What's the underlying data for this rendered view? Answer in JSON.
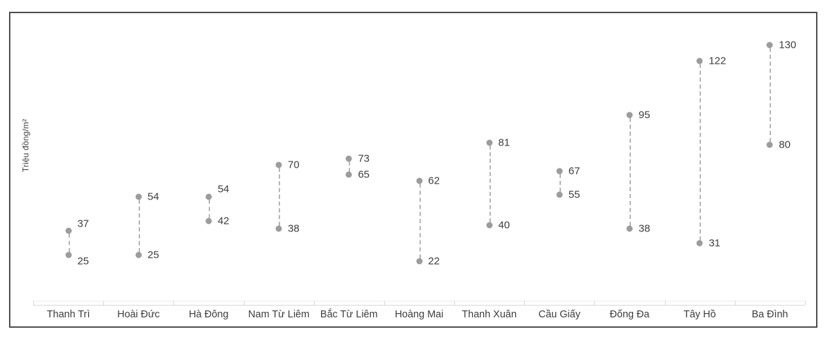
{
  "chart": {
    "y_axis_title": "Triệu đồng/m²",
    "colors": {
      "dot": "#9c9c9c",
      "connector": "#b5b5b5",
      "value_label": "#3d3d3d",
      "category_label": "#3d3d3d",
      "axis_line": "#d8d8d8",
      "axis_line_light": "#ececec",
      "frame_border": "#4d4d4d"
    }
  },
  "chart_data": {
    "type": "scatter",
    "subtype": "dumbbell-range",
    "title": "",
    "xlabel": "",
    "ylabel": "Triệu đồng/m²",
    "ylim": [
      0,
      150
    ],
    "grid": false,
    "legend_position": "none",
    "categories": [
      "Thanh Trì",
      "Hoài Đức",
      "Hà Đông",
      "Nam Từ Liêm",
      "Bắc Từ Liêm",
      "Hoàng Mai",
      "Thanh Xuân",
      "Cầu Giấy",
      "Đống Đa",
      "Tây Hồ",
      "Ba Đình"
    ],
    "series": [
      {
        "name": "max",
        "values": [
          37,
          54,
          54,
          70,
          73,
          62,
          81,
          67,
          95,
          122,
          130
        ]
      },
      {
        "name": "min",
        "values": [
          25,
          25,
          42,
          38,
          65,
          22,
          40,
          55,
          38,
          31,
          80
        ]
      }
    ],
    "annotation_dy": {
      "max": [
        -10,
        0,
        -11,
        0,
        0,
        0,
        0,
        0,
        0,
        0,
        0
      ],
      "min": [
        9,
        0,
        0,
        0,
        0,
        0,
        0,
        0,
        0,
        0,
        0
      ]
    }
  }
}
